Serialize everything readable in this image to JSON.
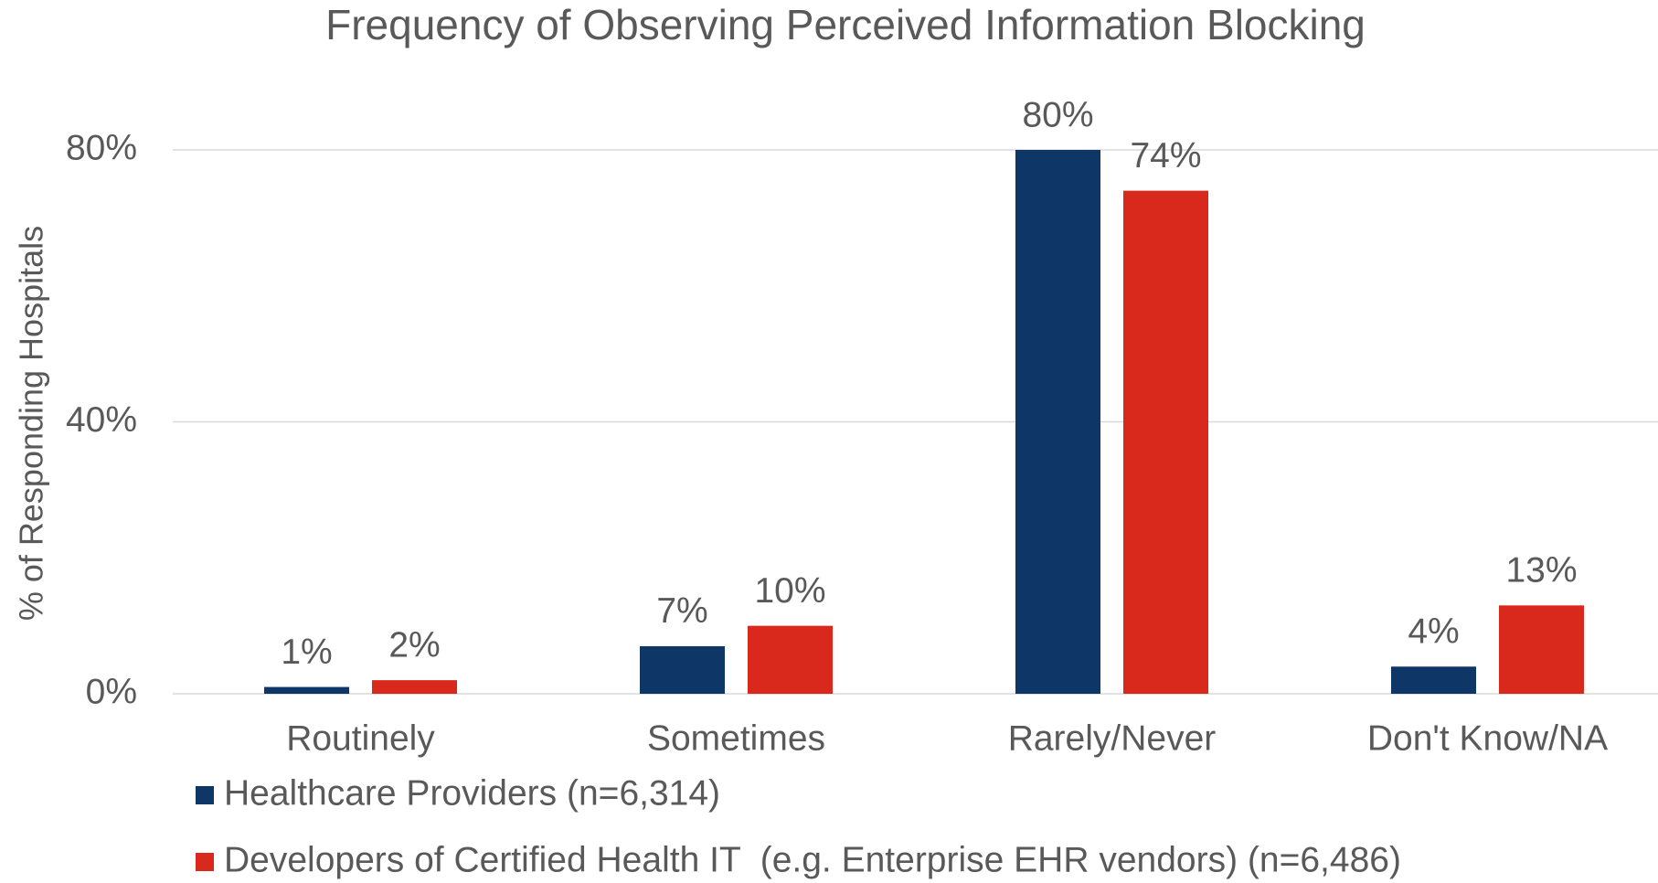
{
  "chart_data": {
    "type": "bar",
    "title": "Frequency of Observing Perceived Information Blocking",
    "y_label": "% of Responding Hospitals",
    "categories": [
      "Routinely",
      "Sometimes",
      "Rarely/Never",
      "Don't Know/NA"
    ],
    "series": [
      {
        "name": "Healthcare Providers (n=6,314)",
        "color": "#0e3768",
        "values": [
          1,
          7,
          80,
          4
        ],
        "value_labels": [
          "1%",
          "7%",
          "80%",
          "4%"
        ]
      },
      {
        "name": "Developers of Certified Health IT  (e.g. Enterprise EHR vendors) (n=6,486)",
        "color": "#d9291c",
        "values": [
          2,
          10,
          74,
          13
        ],
        "value_labels": [
          "2%",
          "10%",
          "74%",
          "13%"
        ]
      }
    ],
    "ylim": [
      0,
      80
    ],
    "yticks": [
      {
        "value": 0,
        "label": "0%"
      },
      {
        "value": 40,
        "label": "40%"
      },
      {
        "value": 80,
        "label": "80%"
      }
    ],
    "grid": true,
    "legend": "bottom"
  }
}
